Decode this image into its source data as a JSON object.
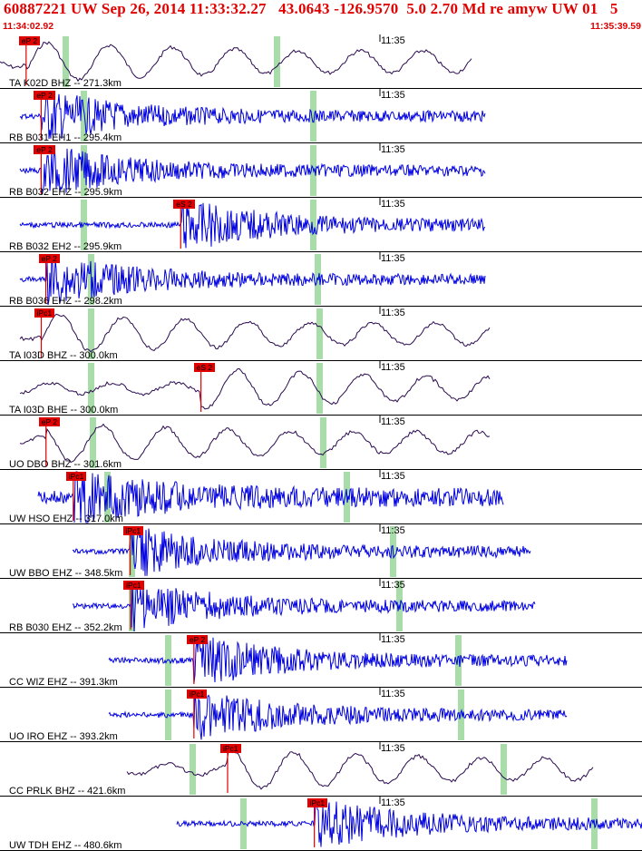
{
  "header": {
    "title": "60887221 UW Sep 26, 2014 11:33:32.27   43.0643 -126.9570  5.0 2.70 Md re amyw UW 01   5",
    "start_time": "11:34:02.92",
    "end_time": "11:35:39.59"
  },
  "time_tick_label": "11:35",
  "colors": {
    "header": "#e00000",
    "trace_blue": "#0000e0",
    "trace_dark": "#2a0a50",
    "pick_red": "#e00000",
    "window_green": "#a8dca8"
  },
  "traces": [
    {
      "label": "TA K02D BHZ -- 271.3km",
      "pick": "eP 2",
      "style": "long",
      "color": "dark",
      "pick_x": 0.04
    },
    {
      "label": "RB B031 EH1 -- 295.4km",
      "pick": "eP 2",
      "style": "short",
      "color": "blue",
      "pick_x": 0.03
    },
    {
      "label": "RB B032 EHZ -- 295.9km",
      "pick": "eP 2",
      "style": "short",
      "color": "blue",
      "pick_x": 0.03
    },
    {
      "label": "RB B032 EH2 -- 295.9km",
      "pick": "eS 2",
      "style": "short",
      "color": "blue",
      "pick_x": 0.33
    },
    {
      "label": "RB B036 EHZ -- 298.2km",
      "pick": "eP 2",
      "style": "short",
      "color": "blue",
      "pick_x": 0.04
    },
    {
      "label": "TA I03D BHZ -- 300.0km",
      "pick": "iPc1",
      "style": "long",
      "color": "dark",
      "pick_x": 0.03
    },
    {
      "label": "TA I03D BHE -- 300.0km",
      "pick": "eS 2",
      "style": "long",
      "color": "dark",
      "pick_x": 0.37
    },
    {
      "label": "UO DBO BHZ -- 301.6km",
      "pick": "eP 2",
      "style": "long",
      "color": "dark",
      "pick_x": 0.04
    },
    {
      "label": "UW HSO EHZ -- 317.0km",
      "pick": "iPc1",
      "style": "mixed",
      "color": "blue",
      "pick_x": 0.06
    },
    {
      "label": "UW BBO EHZ -- 348.5km",
      "pick": "iPc1",
      "style": "short",
      "color": "blue",
      "pick_x": 0.11
    },
    {
      "label": "RB B030 EHZ -- 352.2km",
      "pick": "iPc1",
      "style": "short",
      "color": "blue",
      "pick_x": 0.11
    },
    {
      "label": "CC WIZ EHZ -- 391.3km",
      "pick": "eP 2",
      "style": "short",
      "color": "blue",
      "pick_x": 0.17
    },
    {
      "label": "UO IRO EHZ -- 393.2km",
      "pick": "iPc1",
      "style": "short",
      "color": "blue",
      "pick_x": 0.17
    },
    {
      "label": "CC PRLK BHZ -- 421.6km",
      "pick": "iPc1",
      "style": "long",
      "color": "dark",
      "pick_x": 0.2
    },
    {
      "label": "UW TDH EHZ -- 480.6km",
      "pick": "iPc1",
      "style": "short",
      "color": "blue",
      "pick_x": 0.28
    }
  ]
}
